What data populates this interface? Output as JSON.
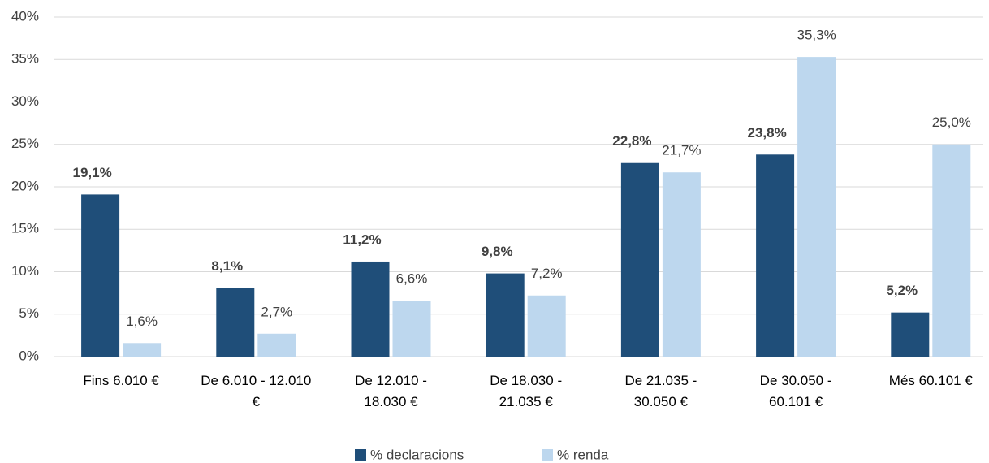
{
  "chart_data": {
    "type": "bar",
    "categories": [
      "Fins 6.010 €",
      "De 6.010 - 12.010 €",
      "De 12.010 - 18.030 €",
      "De 18.030 - 21.035 €",
      "De 21.035 - 30.050 €",
      "De 30.050 - 60.101 €",
      "Més 60.101 €"
    ],
    "series": [
      {
        "name": "% declaracions",
        "color": "#1f4e79",
        "values": [
          19.1,
          8.1,
          11.2,
          9.8,
          22.8,
          23.8,
          5.2
        ],
        "value_labels": [
          "19,1%",
          "8,1%",
          "11,2%",
          "9,8%",
          "22,8%",
          "23,8%",
          "5,2%"
        ]
      },
      {
        "name": "% renda",
        "color": "#bdd7ee",
        "values": [
          1.6,
          2.7,
          6.6,
          7.2,
          21.7,
          35.3,
          25.0
        ],
        "value_labels": [
          "1,6%",
          "2,7%",
          "6,6%",
          "7,2%",
          "21,7%",
          "35,3%",
          "25,0%"
        ]
      }
    ],
    "ylim": [
      0,
      40
    ],
    "yticks": [
      {
        "value": 0,
        "label": "0%"
      },
      {
        "value": 5,
        "label": "5%"
      },
      {
        "value": 10,
        "label": "10%"
      },
      {
        "value": 15,
        "label": "15%"
      },
      {
        "value": 20,
        "label": "20%"
      },
      {
        "value": 25,
        "label": "25%"
      },
      {
        "value": 30,
        "label": "30%"
      },
      {
        "value": 35,
        "label": "35%"
      },
      {
        "value": 40,
        "label": "40%"
      }
    ],
    "grid": true,
    "legend": "bottom"
  }
}
